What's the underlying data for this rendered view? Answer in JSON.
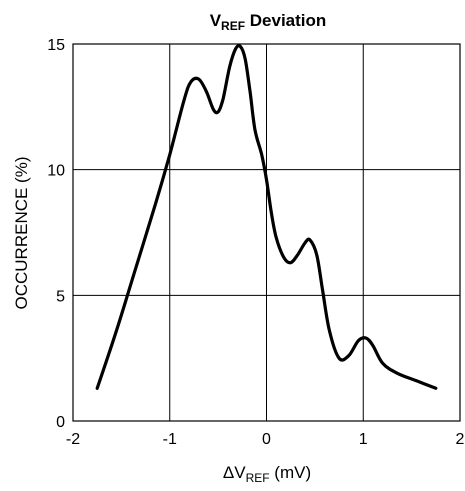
{
  "chart_data": {
    "type": "line",
    "title": {
      "main": "V",
      "sub": "REF",
      "tail": " Deviation"
    },
    "xlabel": {
      "main": "ΔV",
      "sub": "REF",
      "tail": " (mV)"
    },
    "ylabel": "OCCURRENCE (%)",
    "xlim": [
      -2,
      2
    ],
    "ylim": [
      0,
      15
    ],
    "x_ticks": [
      -2,
      -1,
      0,
      1,
      2
    ],
    "y_ticks": [
      0,
      5,
      10,
      15
    ],
    "x_tick_labels": [
      "-2",
      "-1",
      "0",
      "1",
      "2"
    ],
    "y_tick_labels": [
      "0",
      "5",
      "10",
      "15"
    ],
    "grid": true,
    "legend": "none",
    "line_color": "#000000",
    "series": [
      {
        "x": [
          -1.75,
          -1.55,
          -1.35,
          -1.15,
          -1.0,
          -0.85,
          -0.78,
          -0.7,
          -0.62,
          -0.55,
          -0.5,
          -0.45,
          -0.38,
          -0.32,
          -0.27,
          -0.22,
          -0.17,
          -0.12,
          -0.05,
          0.0,
          0.05,
          0.1,
          0.18,
          0.25,
          0.32,
          0.4,
          0.45,
          0.52,
          0.58,
          0.65,
          0.75,
          0.85,
          0.95,
          1.03,
          1.1,
          1.2,
          1.35,
          1.55,
          1.75
        ],
        "y": [
          1.3,
          3.6,
          6.1,
          8.6,
          10.6,
          12.8,
          13.5,
          13.6,
          13.1,
          12.4,
          12.3,
          12.8,
          14.1,
          14.8,
          14.9,
          14.4,
          13.1,
          11.6,
          10.6,
          9.6,
          8.3,
          7.3,
          6.5,
          6.3,
          6.6,
          7.1,
          7.2,
          6.6,
          5.2,
          3.6,
          2.5,
          2.6,
          3.2,
          3.3,
          3.0,
          2.3,
          1.9,
          1.6,
          1.3
        ]
      }
    ]
  }
}
